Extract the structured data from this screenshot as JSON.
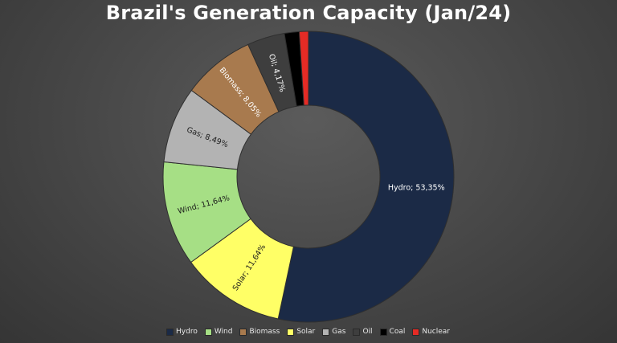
{
  "chart_data": {
    "type": "pie",
    "title": "Brazil's Generation Capacity (Jan/24)",
    "donut": true,
    "legend_position": "bottom",
    "categories": [
      "Hydro",
      "Wind",
      "Biomass",
      "Solar",
      "Gas",
      "Oil",
      "Coal",
      "Nuclear"
    ],
    "values": [
      53.35,
      11.64,
      8.05,
      11.64,
      8.49,
      4.17,
      1.64,
      1.02
    ],
    "colors": [
      "#1b2a46",
      "#a6df85",
      "#a87a4e",
      "#ffff66",
      "#b3b3b3",
      "#3e3e3e",
      "#000000",
      "#e52b25"
    ],
    "draw_order": [
      "Hydro",
      "Solar",
      "Wind",
      "Gas",
      "Biomass",
      "Oil",
      "Coal",
      "Nuclear"
    ],
    "data_labels": {
      "Hydro": "Hydro; 53,35%",
      "Solar": "Solar; 11,64%",
      "Wind": "Wind; 11,64%",
      "Gas": "Gas; 8,49%",
      "Biomass": "Biomass; 8,05%",
      "Oil": "Oil; 4,17%"
    }
  }
}
